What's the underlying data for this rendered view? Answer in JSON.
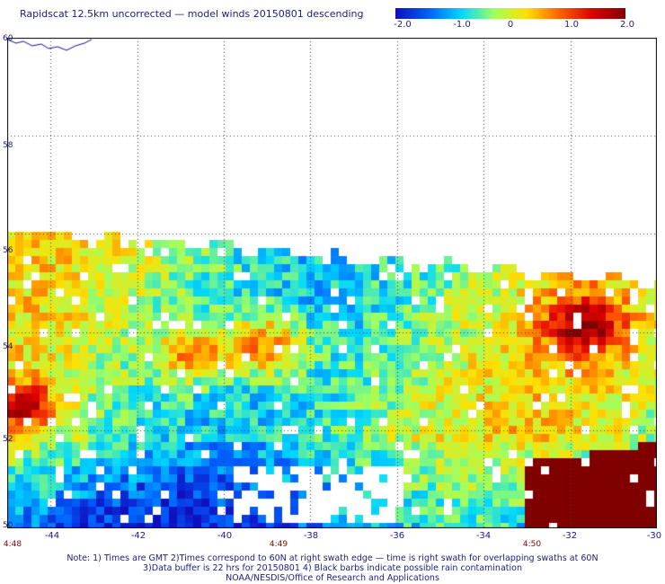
{
  "title": "Rapidscat 12.5km uncorrected — model winds 20150801 descending",
  "colorbar": {
    "labels": [
      "-2.0",
      "-1.0",
      "0",
      "1.0",
      "2.0"
    ],
    "values": [
      -2.0,
      -1.0,
      0,
      1.0,
      2.0
    ],
    "colors": [
      "#1010c0",
      "#0060ff",
      "#00d8ff",
      "#a0ff60",
      "#ffe000",
      "#ff6000",
      "#e00000",
      "#800000"
    ]
  },
  "map": {
    "lon_range": [
      -45,
      -30
    ],
    "lat_range": [
      50,
      60
    ],
    "x_ticks": [
      "-44",
      "-42",
      "-40",
      "-38",
      "-36",
      "-34",
      "-32",
      "-30"
    ],
    "x_tick_values": [
      -44,
      -42,
      -40,
      -38,
      -36,
      -34,
      -32,
      -30
    ],
    "y_ticks": [
      "60",
      "58",
      "56",
      "54",
      "52",
      "50"
    ],
    "y_tick_values": [
      60,
      58,
      56,
      54,
      52,
      50
    ],
    "time_labels": [
      {
        "text": "4:48",
        "lon": -45
      },
      {
        "text": "4:49",
        "lon": -39.7
      },
      {
        "text": "4:50",
        "lon": -33.9
      }
    ],
    "grid": "dotted",
    "data_edge_north_lat": 56
  },
  "notes": [
    "Note: 1) Times are GMT 2)Times correspond to 60N at right swath edge — time is right swath for overlapping swaths at 60N",
    "3)Data buffer is 22 hrs for 20150801 4) Black barbs indicate possible rain contamination",
    "NOAA/NESDIS/Office of Research and Applications"
  ]
}
